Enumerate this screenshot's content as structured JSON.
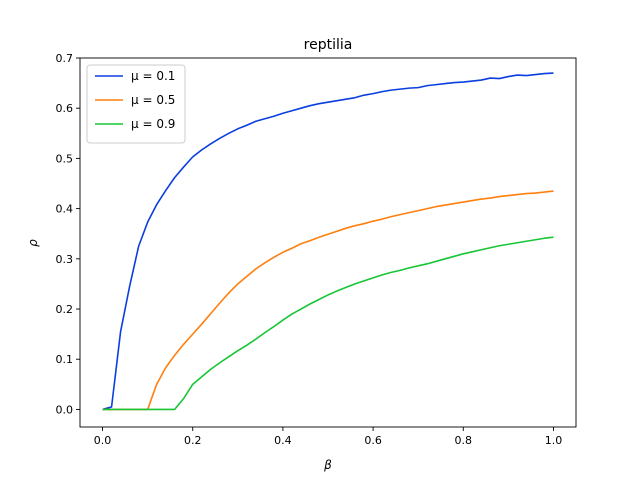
{
  "chart_data": {
    "type": "line",
    "title": "reptilia",
    "xlabel": "β",
    "ylabel": "ρ",
    "xlim": [
      -0.05,
      1.05
    ],
    "ylim": [
      -0.035,
      0.7
    ],
    "xticks": [
      0.0,
      0.2,
      0.4,
      0.6,
      0.8,
      1.0
    ],
    "xtick_labels": [
      "0.0",
      "0.2",
      "0.4",
      "0.6",
      "0.8",
      "1.0"
    ],
    "yticks": [
      0.0,
      0.1,
      0.2,
      0.3,
      0.4,
      0.5,
      0.6,
      0.7
    ],
    "ytick_labels": [
      "0.0",
      "0.1",
      "0.2",
      "0.3",
      "0.4",
      "0.5",
      "0.6",
      "0.7"
    ],
    "grid": false,
    "legend_position": "top-left",
    "series": [
      {
        "name": "μ = 0.1",
        "color": "#0a3ee0",
        "x": [
          0.0,
          0.02,
          0.04,
          0.06,
          0.08,
          0.1,
          0.12,
          0.14,
          0.16,
          0.18,
          0.2,
          0.22,
          0.24,
          0.26,
          0.28,
          0.3,
          0.32,
          0.34,
          0.36,
          0.38,
          0.4,
          0.42,
          0.44,
          0.46,
          0.48,
          0.5,
          0.52,
          0.54,
          0.56,
          0.58,
          0.6,
          0.62,
          0.64,
          0.66,
          0.68,
          0.7,
          0.72,
          0.74,
          0.76,
          0.78,
          0.8,
          0.82,
          0.84,
          0.86,
          0.88,
          0.9,
          0.92,
          0.94,
          0.96,
          0.98,
          1.0
        ],
        "values": [
          0.0,
          0.005,
          0.155,
          0.245,
          0.325,
          0.373,
          0.408,
          0.436,
          0.462,
          0.483,
          0.503,
          0.517,
          0.529,
          0.54,
          0.55,
          0.559,
          0.566,
          0.574,
          0.579,
          0.584,
          0.59,
          0.595,
          0.6,
          0.605,
          0.609,
          0.612,
          0.615,
          0.618,
          0.621,
          0.626,
          0.629,
          0.633,
          0.636,
          0.638,
          0.64,
          0.641,
          0.645,
          0.647,
          0.649,
          0.651,
          0.652,
          0.654,
          0.656,
          0.66,
          0.659,
          0.663,
          0.666,
          0.665,
          0.667,
          0.669,
          0.67
        ]
      },
      {
        "name": "μ = 0.5",
        "color": "#ff7f0e",
        "x": [
          0.0,
          0.02,
          0.04,
          0.06,
          0.08,
          0.1,
          0.12,
          0.14,
          0.16,
          0.18,
          0.2,
          0.22,
          0.24,
          0.26,
          0.28,
          0.3,
          0.32,
          0.34,
          0.36,
          0.38,
          0.4,
          0.42,
          0.44,
          0.46,
          0.48,
          0.5,
          0.52,
          0.54,
          0.56,
          0.58,
          0.6,
          0.62,
          0.64,
          0.66,
          0.68,
          0.7,
          0.72,
          0.74,
          0.76,
          0.78,
          0.8,
          0.82,
          0.84,
          0.86,
          0.88,
          0.9,
          0.92,
          0.94,
          0.96,
          0.98,
          1.0
        ],
        "values": [
          0.0,
          0.0,
          0.0,
          0.0,
          0.0,
          0.0,
          0.05,
          0.083,
          0.108,
          0.13,
          0.15,
          0.17,
          0.191,
          0.212,
          0.232,
          0.25,
          0.265,
          0.28,
          0.292,
          0.303,
          0.313,
          0.321,
          0.33,
          0.336,
          0.343,
          0.349,
          0.355,
          0.361,
          0.366,
          0.37,
          0.375,
          0.379,
          0.384,
          0.388,
          0.392,
          0.396,
          0.4,
          0.404,
          0.407,
          0.41,
          0.413,
          0.416,
          0.419,
          0.421,
          0.424,
          0.426,
          0.428,
          0.43,
          0.431,
          0.433,
          0.435
        ]
      },
      {
        "name": "μ = 0.9",
        "color": "#17c535",
        "x": [
          0.0,
          0.02,
          0.04,
          0.06,
          0.08,
          0.1,
          0.12,
          0.14,
          0.16,
          0.18,
          0.2,
          0.22,
          0.24,
          0.26,
          0.28,
          0.3,
          0.32,
          0.34,
          0.36,
          0.38,
          0.4,
          0.42,
          0.44,
          0.46,
          0.48,
          0.5,
          0.52,
          0.54,
          0.56,
          0.58,
          0.6,
          0.62,
          0.64,
          0.66,
          0.68,
          0.7,
          0.72,
          0.74,
          0.76,
          0.78,
          0.8,
          0.82,
          0.84,
          0.86,
          0.88,
          0.9,
          0.92,
          0.94,
          0.96,
          0.98,
          1.0
        ],
        "values": [
          0.0,
          0.0,
          0.0,
          0.0,
          0.0,
          0.0,
          0.0,
          0.0,
          0.0,
          0.022,
          0.05,
          0.065,
          0.08,
          0.093,
          0.105,
          0.117,
          0.128,
          0.14,
          0.153,
          0.165,
          0.178,
          0.19,
          0.2,
          0.21,
          0.219,
          0.228,
          0.236,
          0.243,
          0.25,
          0.256,
          0.262,
          0.268,
          0.273,
          0.277,
          0.282,
          0.286,
          0.29,
          0.295,
          0.3,
          0.305,
          0.31,
          0.314,
          0.318,
          0.322,
          0.326,
          0.329,
          0.332,
          0.335,
          0.338,
          0.341,
          0.343
        ]
      }
    ]
  }
}
